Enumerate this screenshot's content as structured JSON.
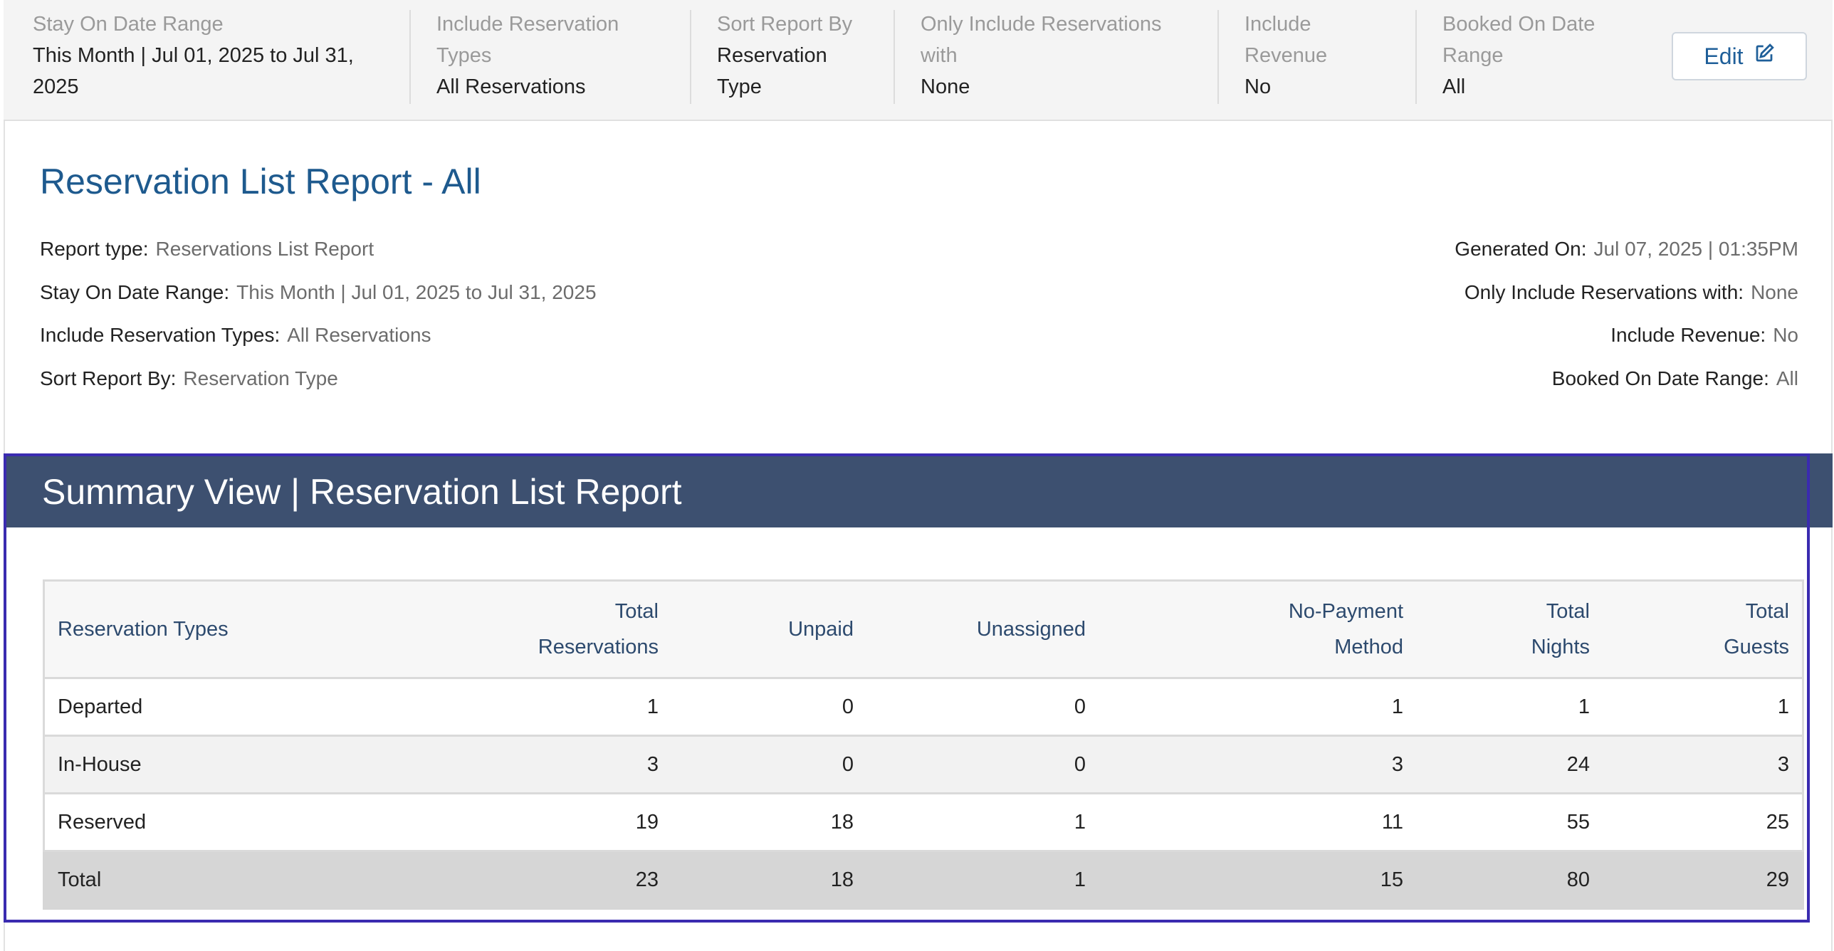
{
  "filters": [
    {
      "label": "Stay On Date Range",
      "value": "This Month | Jul 01, 2025 to Jul 31, 2025"
    },
    {
      "label": "Include Reservation Types",
      "value": "All Reservations"
    },
    {
      "label": "Sort Report By",
      "value": "Reservation Type"
    },
    {
      "label": "Only Include Reservations with",
      "value": "None"
    },
    {
      "label": "Include Revenue",
      "value": "No"
    },
    {
      "label": "Booked On Date Range",
      "value": "All"
    }
  ],
  "edit_label": "Edit",
  "report": {
    "title": "Reservation List Report - All",
    "left_meta": [
      {
        "key": "Report type:",
        "value": "Reservations List Report"
      },
      {
        "key": "Stay On Date Range:",
        "value": "This Month | Jul 01, 2025 to Jul 31, 2025"
      },
      {
        "key": "Include Reservation Types:",
        "value": "All Reservations"
      },
      {
        "key": "Sort Report By:",
        "value": "Reservation Type"
      }
    ],
    "right_meta": [
      {
        "key": "Generated On:",
        "value": "Jul 07, 2025 | 01:35PM"
      },
      {
        "key": "Only Include Reservations with:",
        "value": "None"
      },
      {
        "key": "Include Revenue:",
        "value": "No"
      },
      {
        "key": "Booked On Date Range:",
        "value": "All"
      }
    ]
  },
  "summary": {
    "title": "Summary View | Reservation List Report",
    "columns": [
      "Reservation Types",
      "Total Reservations",
      "Unpaid",
      "Unassigned",
      "No-Payment Method",
      "Total Nights",
      "Total Guests"
    ],
    "rows": [
      [
        "Departed",
        "1",
        "0",
        "0",
        "1",
        "1",
        "1"
      ],
      [
        "In-House",
        "3",
        "0",
        "0",
        "3",
        "24",
        "3"
      ],
      [
        "Reserved",
        "19",
        "18",
        "1",
        "11",
        "55",
        "25"
      ]
    ],
    "total": [
      "Total",
      "23",
      "18",
      "1",
      "15",
      "80",
      "29"
    ]
  }
}
